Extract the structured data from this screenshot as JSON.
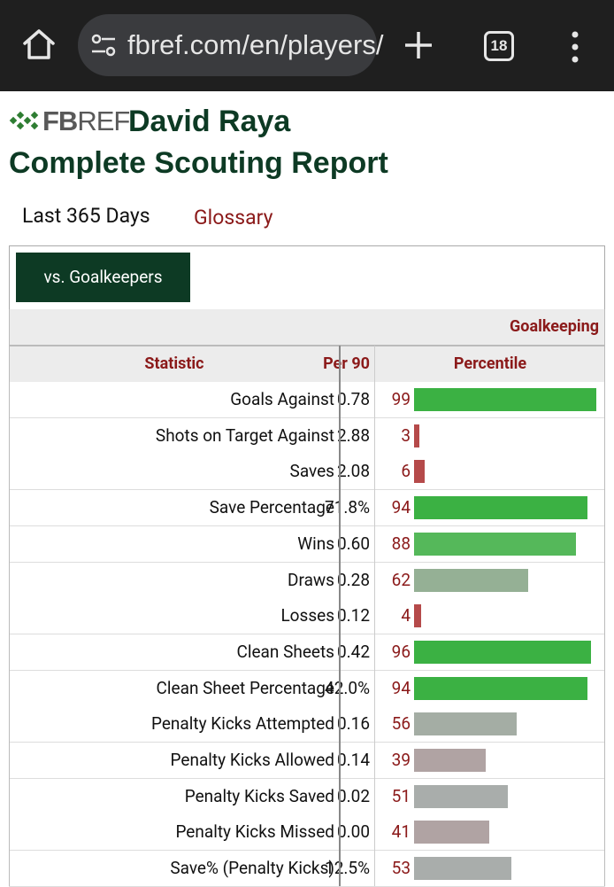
{
  "browser": {
    "url": "fbref.com/en/players/",
    "tab_count": "18",
    "home_icon": "home-icon",
    "site_settings_icon": "tune-icon",
    "new_tab_icon": "plus-icon",
    "menu_icon": "more-vert-icon"
  },
  "header": {
    "logo_fb": "FB",
    "logo_ref": "REF",
    "player_name": "David Raya",
    "report_title": "Complete Scouting Report"
  },
  "nav": {
    "range": "Last 365 Days",
    "glossary": "Glossary"
  },
  "filter": {
    "button_label": "vs. Goalkeepers"
  },
  "table": {
    "group_label": "Goalkeeping",
    "headers": {
      "statistic": "Statistic",
      "per90": "Per 90",
      "percentile": "Percentile"
    },
    "colors": {
      "high": "#3bb143",
      "mid_high": "#55b85a",
      "neutral": "#95b095",
      "neutral_gray": "#a4ada4",
      "low_gray": "#b0a3a3",
      "low": "#b54a4a"
    },
    "rows": [
      {
        "stat": "Goals Against",
        "per90": "0.78",
        "percentile": "99",
        "pct": 99,
        "color": "#3bb143"
      },
      {
        "stat": "Shots on Target Against",
        "per90": "2.88",
        "percentile": "3",
        "pct": 3,
        "color": "#b54a4a"
      },
      {
        "stat": "Saves",
        "per90": "2.08",
        "percentile": "6",
        "pct": 6,
        "color": "#b54a4a"
      },
      {
        "stat": "Save Percentage",
        "per90": "71.8%",
        "percentile": "94",
        "pct": 94,
        "color": "#3bb143"
      },
      {
        "stat": "Wins",
        "per90": "0.60",
        "percentile": "88",
        "pct": 88,
        "color": "#55b85a"
      },
      {
        "stat": "Draws",
        "per90": "0.28",
        "percentile": "62",
        "pct": 62,
        "color": "#95b095"
      },
      {
        "stat": "Losses",
        "per90": "0.12",
        "percentile": "4",
        "pct": 4,
        "color": "#b54a4a"
      },
      {
        "stat": "Clean Sheets",
        "per90": "0.42",
        "percentile": "96",
        "pct": 96,
        "color": "#3bb143"
      },
      {
        "stat": "Clean Sheet Percentage",
        "per90": "42.0%",
        "percentile": "94",
        "pct": 94,
        "color": "#3bb143"
      },
      {
        "stat": "Penalty Kicks Attempted",
        "per90": "0.16",
        "percentile": "56",
        "pct": 56,
        "color": "#a4ada4"
      },
      {
        "stat": "Penalty Kicks Allowed",
        "per90": "0.14",
        "percentile": "39",
        "pct": 39,
        "color": "#b0a3a3"
      },
      {
        "stat": "Penalty Kicks Saved",
        "per90": "0.02",
        "percentile": "51",
        "pct": 51,
        "color": "#a9adab"
      },
      {
        "stat": "Penalty Kicks Missed",
        "per90": "0.00",
        "percentile": "41",
        "pct": 41,
        "color": "#b0a3a3"
      },
      {
        "stat": "Save% (Penalty Kicks)",
        "per90": "12.5%",
        "percentile": "53",
        "pct": 53,
        "color": "#a9adab"
      }
    ]
  }
}
